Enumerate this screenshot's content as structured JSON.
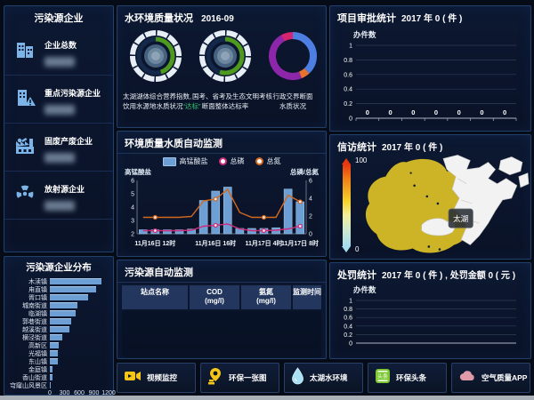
{
  "colors": {
    "accent_blue": "#6d9fd4",
    "line_orange": "#d2691e",
    "line_pink": "#cc2d7a",
    "lake_yellow": "#cdb326",
    "highlight_green": "#2ecc71",
    "gauge_green": "#4e9a1e"
  },
  "sidebar": {
    "title": "污染源企业",
    "items": [
      {
        "label": "企业总数",
        "icon": "building-icon"
      },
      {
        "label": "重点污染源企业",
        "icon": "building-alert-icon"
      },
      {
        "label": "固废产废企业",
        "icon": "factory-icon"
      },
      {
        "label": "放射源企业",
        "icon": "radiation-icon"
      }
    ]
  },
  "distribution": {
    "title": "污染源企业分布"
  },
  "water_status": {
    "title": "水环境质量状况",
    "date": "2016-09",
    "gauges": [
      {
        "line1": "太湖湖体综合营养指数,",
        "line2": "饮用水源地水质状况",
        "highlight": "“达标”"
      },
      {
        "line1": "国考、省考及生态文明考核",
        "line2": "断面整体达标率",
        "highlight": ""
      }
    ],
    "donut": {
      "line1": "行政交界断面",
      "line2": "水质状况"
    }
  },
  "auto_monitor": {
    "title": "环境质量水质自动监测",
    "legend": [
      "高锰酸盐",
      "总磷",
      "总氮"
    ],
    "left_axis_label": "高锰酸盐",
    "right_axis_label": "总磷/总氮"
  },
  "monitor_table": {
    "title": "污染源自动监测",
    "headers": [
      {
        "l1": "站点名称",
        "l2": ""
      },
      {
        "l1": "COD",
        "l2": "(mg/l)"
      },
      {
        "l1": "氨氮",
        "l2": "(mg/l)"
      },
      {
        "l1": "监测时间",
        "l2": ""
      }
    ]
  },
  "approval": {
    "title": "项目审批统计",
    "subtitle": "2017 年 0 ( 件 )",
    "ylabel": "办件数"
  },
  "petition": {
    "title": "信访统计",
    "subtitle": "2017 年 0 ( 件 )",
    "legend_max": "100",
    "legend_min": "0",
    "map_label": "太湖"
  },
  "penalty": {
    "title": "处罚统计",
    "subtitle": "2017 年 0 ( 件 ) , 处罚金额 0 ( 元 )",
    "ylabel": "办件数"
  },
  "bottom_bar": {
    "items": [
      {
        "label": "视频监控",
        "icon": "video-camera-icon"
      },
      {
        "label": "环保一张图",
        "icon": "map-pin-icon"
      },
      {
        "label": "太湖水环境",
        "icon": "water-drop-icon"
      },
      {
        "label": "环保头条",
        "icon": "headlines-icon",
        "icon_text": "头条"
      },
      {
        "label": "空气质量APP",
        "icon": "cloud-icon"
      }
    ]
  },
  "chart_data": {
    "distribution": {
      "type": "bar",
      "orientation": "horizontal",
      "title": "污染源企业分布",
      "categories": [
        "木渎镇",
        "甪直镇",
        "胥口镇",
        "城南街道",
        "临湖镇",
        "郭巷街道",
        "越溪街道",
        "横泾街道",
        "高新区",
        "光福镇",
        "东山镇",
        "金庭镇",
        "香山街道",
        "穹窿山风景区"
      ],
      "values": [
        1050,
        950,
        790,
        560,
        520,
        430,
        400,
        260,
        190,
        170,
        160,
        55,
        50,
        25
      ],
      "xticks": [
        0,
        300,
        600,
        900,
        1200
      ],
      "xlim": [
        0,
        1200
      ]
    },
    "water_auto": {
      "type": "combo",
      "title": "环境质量水质自动监测",
      "bar_series": "高锰酸盐",
      "bars": [
        2.3,
        2.3,
        2.3,
        2.3,
        2.35,
        4.5,
        5.2,
        5.5,
        2.4,
        2.4,
        2.4,
        2.45,
        5.35,
        4.4
      ],
      "left_axis": {
        "label": "高锰酸盐",
        "ticks": [
          2,
          3,
          4,
          5,
          6
        ],
        "lim": [
          2,
          6
        ]
      },
      "right_axis": {
        "label": "总磷/总氮",
        "ticks": [
          0,
          2,
          4,
          6
        ],
        "lim": [
          0,
          6
        ]
      },
      "series": [
        {
          "name": "总磷",
          "color": "#cc2d7a",
          "values": [
            0.35,
            0.35,
            0.35,
            0.35,
            0.4,
            0.85,
            0.95,
            1.1,
            0.55,
            0.35,
            0.35,
            0.4,
            0.55,
            0.85
          ]
        },
        {
          "name": "总氮",
          "color": "#d2691e",
          "values": [
            1.85,
            1.85,
            1.85,
            1.85,
            1.95,
            3.7,
            3.9,
            5.0,
            2.4,
            1.85,
            1.85,
            1.85,
            4.35,
            3.6
          ]
        }
      ],
      "x_tick_labels": [
        "11月16日 12时",
        "11月16日 16时",
        "11月17日 4时",
        "11月17日 8时"
      ],
      "x_tick_positions": [
        1.5,
        6.5,
        10.5,
        13.5
      ],
      "dot_indices": [
        1,
        6,
        10,
        13
      ]
    },
    "gauges": [
      {
        "type": "gauge",
        "fraction": 0.45,
        "color": "#4e9a1e"
      },
      {
        "type": "gauge",
        "fraction": 0.55,
        "color": "#4e9a1e"
      }
    ],
    "boundary_donut": {
      "type": "pie",
      "segments": [
        {
          "name": "segment-blue",
          "color": "#4d7fe3",
          "pct": 38
        },
        {
          "name": "segment-orange",
          "color": "#e8732c",
          "pct": 6
        },
        {
          "name": "segment-purple",
          "color": "#8d26a8",
          "pct": 48
        },
        {
          "name": "segment-crimson",
          "color": "#d6246e",
          "pct": 8
        }
      ]
    },
    "approval": {
      "type": "bar",
      "ylabel": "办件数",
      "yticks": [
        0,
        0.2,
        0.4,
        0.6,
        0.8,
        1
      ],
      "ylim": [
        0,
        1
      ],
      "values": [
        0,
        0,
        0,
        0,
        0,
        0,
        0
      ],
      "value_labels": [
        "0",
        "0",
        "0",
        "0",
        "0",
        "0",
        "0"
      ]
    },
    "penalty": {
      "type": "line",
      "ylabel": "办件数",
      "yticks": [
        0,
        0.2,
        0.4,
        0.6,
        0.8,
        1
      ],
      "ylim": [
        0,
        1
      ],
      "values": []
    }
  }
}
